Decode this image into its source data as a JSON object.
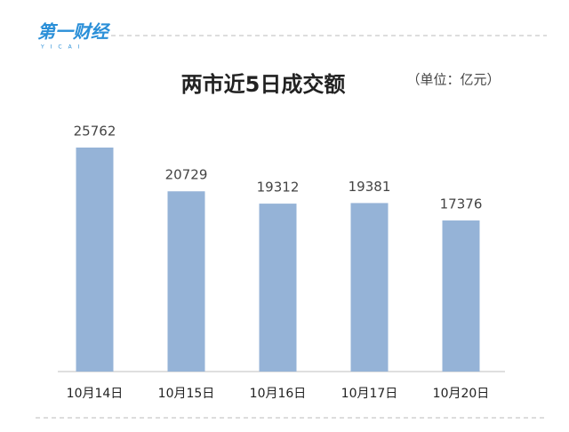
{
  "logo": {
    "name": "第一财经",
    "sub": "YICAI"
  },
  "chart_data": {
    "type": "bar",
    "title": "两市近5日成交额",
    "unit": "（单位：亿元）",
    "categories": [
      "10月14日",
      "10月15日",
      "10月16日",
      "10月17日",
      "10月20日"
    ],
    "values": [
      25762,
      20729,
      19312,
      19381,
      17376
    ],
    "color": "#95b3d7"
  }
}
